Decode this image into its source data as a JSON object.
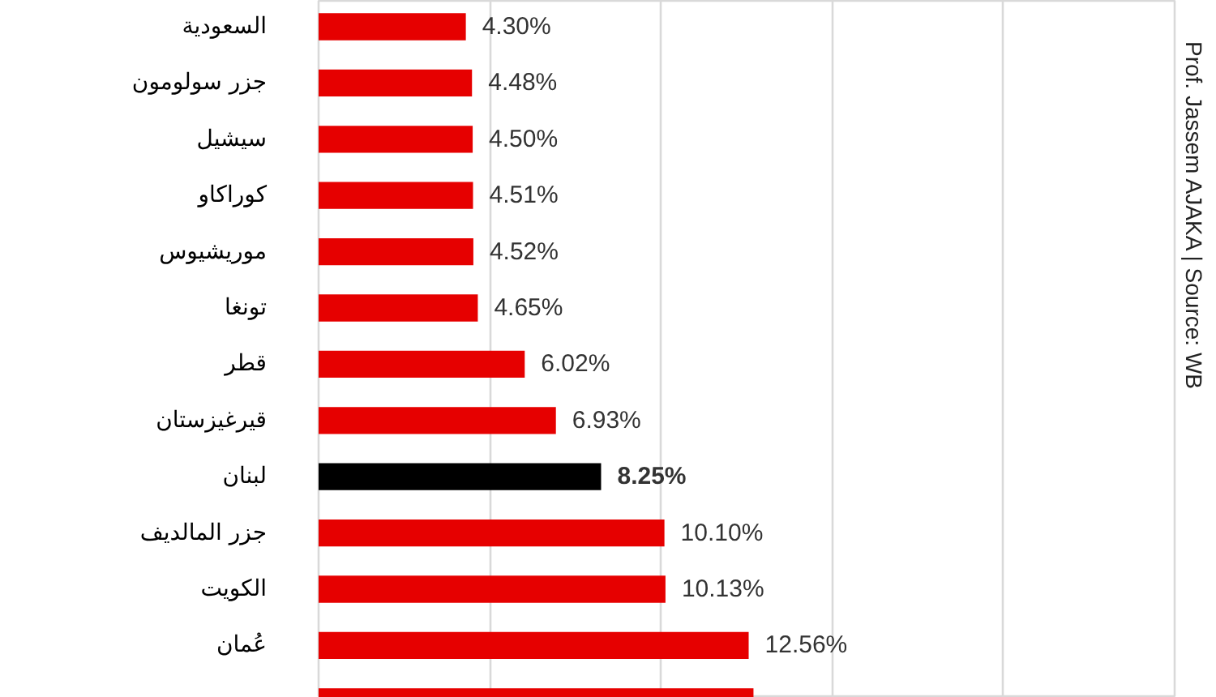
{
  "chart_data": {
    "type": "bar",
    "orientation": "horizontal",
    "categories": [
      "السعودية",
      "جزر سولومون",
      "سيشيل",
      "كوراكاو",
      "موريشيوس",
      "تونغا",
      "قطر",
      "قيرغيزستان",
      "لبنان",
      "جزر المالديف",
      "الكويت",
      "عُمان",
      null
    ],
    "values": [
      4.3,
      4.48,
      4.5,
      4.51,
      4.52,
      4.65,
      6.02,
      6.93,
      8.25,
      10.1,
      10.13,
      12.56,
      12.7
    ],
    "colors": [
      "#e60000",
      "#e60000",
      "#e60000",
      "#e60000",
      "#e60000",
      "#e60000",
      "#e60000",
      "#e60000",
      "#000000",
      "#e60000",
      "#e60000",
      "#e60000",
      "#e60000"
    ],
    "value_labels": [
      "4.30%",
      "4.48%",
      "4.50%",
      "4.51%",
      "4.52%",
      "4.65%",
      "6.02%",
      "6.93%",
      "8.25%",
      "10.10%",
      "10.13%",
      "12.56%",
      null
    ],
    "xlim": [
      0,
      25
    ],
    "xticks": [
      {
        "value": 0,
        "label": null
      },
      {
        "value": 5,
        "label": null
      },
      {
        "value": 10,
        "label": null
      },
      {
        "value": 15,
        "label": null
      },
      {
        "value": 20,
        "label": null
      },
      {
        "value": 25,
        "label": null
      }
    ],
    "grid": "x",
    "tick_labels": "y",
    "annotations": [
      "Prof. Jassem AJAKA | Source: WB"
    ]
  }
}
